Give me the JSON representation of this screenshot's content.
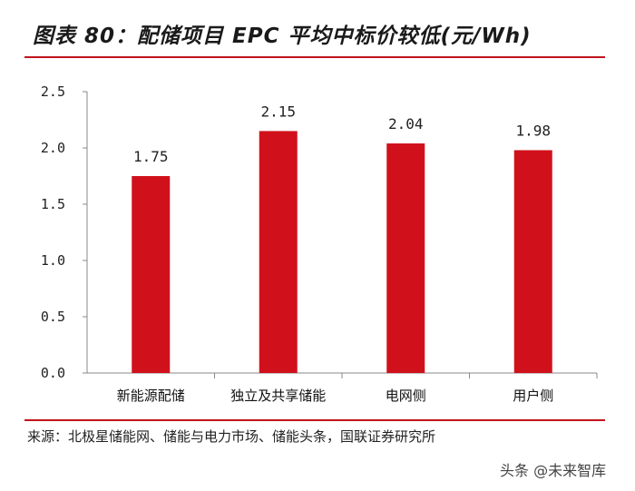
{
  "title": "图表 80：配储项目 EPC 平均中标价较低(元/Wh)",
  "source": "来源：北极星储能网、储能与电力市场、储能头条，国联证券研究所",
  "watermark": "头条 @未来智库",
  "colors": {
    "bar": "#d0111b",
    "rule": "#c0141c",
    "axis": "#888888"
  },
  "chart_data": {
    "type": "bar",
    "categories": [
      "新能源配储",
      "独立及共享储能",
      "电网侧",
      "用户侧"
    ],
    "values": [
      1.75,
      2.15,
      2.04,
      1.98
    ],
    "value_labels": [
      "1.75",
      "2.15",
      "2.04",
      "1.98"
    ],
    "title": "图表 80：配储项目 EPC 平均中标价较低(元/Wh)",
    "xlabel": "",
    "ylabel": "",
    "ylim": [
      0,
      2.5
    ],
    "yticks": [
      0,
      0.5,
      1,
      1.5,
      2,
      2.5
    ],
    "ytick_labels": [
      "0.0",
      "0.5",
      "1.0",
      "1.5",
      "2.0",
      "2.5"
    ],
    "grid": false,
    "legend": "none"
  }
}
